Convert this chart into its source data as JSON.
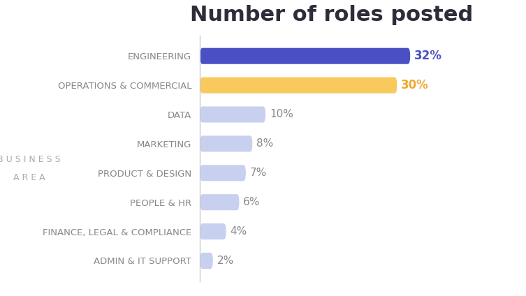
{
  "title": "Number of roles posted",
  "title_fontsize": 22,
  "title_fontweight": "bold",
  "title_color": "#2d2d3a",
  "ylabel_line1": "B U S I N E S S",
  "ylabel_line2": "A R E A",
  "categories": [
    "ADMIN & IT SUPPORT",
    "FINANCE, LEGAL & COMPLIANCE",
    "PEOPLE & HR",
    "PRODUCT & DESIGN",
    "MARKETING",
    "DATA",
    "OPERATIONS & COMMERCIAL",
    "ENGINEERING"
  ],
  "values": [
    2,
    4,
    6,
    7,
    8,
    10,
    30,
    32
  ],
  "bar_colors": [
    "#c8d0f0",
    "#c8d0f0",
    "#c8d0f0",
    "#c8d0f0",
    "#c8d0f0",
    "#c8d0f0",
    "#f9c95e",
    "#4a4fc4"
  ],
  "label_colors": [
    "#888888",
    "#888888",
    "#888888",
    "#888888",
    "#888888",
    "#888888",
    "#f0a830",
    "#4a4fc4"
  ],
  "label_fontsize_large": 12,
  "label_fontsize_small": 11,
  "category_fontsize": 9.5,
  "category_color": "#888888",
  "background_color": "#ffffff",
  "xlim": [
    0,
    40
  ],
  "bar_height": 0.55,
  "rounding_size": 0.35
}
